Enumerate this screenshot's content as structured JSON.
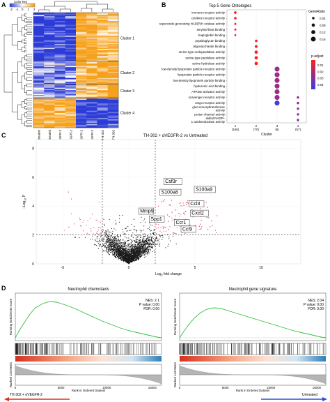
{
  "panels": {
    "a": "A",
    "b": "B",
    "c": "C",
    "d": "D"
  },
  "colors": {
    "heat_low": "#2b3bd6",
    "heat_mid": "#ffffff",
    "heat_high": "#f6a01a",
    "dot_low": "#3b3be8",
    "dot_high": "#ff1f1f",
    "volcano_sig": "#e0405a",
    "volcano_ns": "#1a1a1a",
    "gsea_curve": "#2fbf3a",
    "gsea_red": "#d7301f",
    "gsea_blue": "#2c7fb8"
  },
  "heatmap": {
    "legend_title": "Color Key",
    "legend_ticks": [
      "-2",
      "-1",
      "0",
      "1",
      "2"
    ],
    "clusters": [
      "Cluster 1",
      "Cluster 2",
      "Cluster 3",
      "Cluster 4"
    ],
    "columns": [
      "Untreated",
      "Untreated",
      "αVEGFR-2",
      "αVEGFR-2",
      "TH-302 + αVEGFR-2",
      "TH-302 + αVEGFR-2",
      "TH-302",
      "TH-302"
    ]
  },
  "chart_data": [
    {
      "type": "scatter",
      "title": "Top 5 Gene Ontologies",
      "xlabel": "Cluster",
      "categories": [
        "1\n(156)",
        "2\n(70)",
        "3\n(6)",
        "4\n(57)"
      ],
      "category_lines": [
        [
          "1",
          "(156)"
        ],
        [
          "2",
          "(70)"
        ],
        [
          "3",
          "(6)"
        ],
        [
          "4",
          "(57)"
        ]
      ],
      "terms": [
        "immune receptor activity",
        "cytokine receptor activity",
        "superoxide-generating NAD(P)H oxidase activity",
        "amyloid-beta binding",
        "haptoglobin binding",
        "peptidoglycan binding",
        "oligosaccharide binding",
        "serine-type endopeptidase activity",
        "serine-type peptidase activity",
        "serine hydrolase activity",
        "low-density lipoprotein particle receptor activity",
        "lipoprotein particle receptor activity",
        "low-density lipoprotein particle binding",
        "hyaluronic acid binding",
        "ATPase activator activity",
        "scavenger receptor activity",
        "cargo receptor activity",
        "glucuronosyltransferase activity",
        "proton channel activity",
        "alditol:NADP+ 1-oxidoreductase activity"
      ],
      "term_lines": [
        [
          "immune receptor activity"
        ],
        [
          "cytokine receptor activity"
        ],
        [
          "superoxide-generating NAD(P)H oxidase activity"
        ],
        [
          "amyloid-beta binding"
        ],
        [
          "haptoglobin binding"
        ],
        [
          "peptidoglycan binding"
        ],
        [
          "oligosaccharide binding"
        ],
        [
          "serine-type endopeptidase activity"
        ],
        [
          "serine-type peptidase activity"
        ],
        [
          "serine hydrolase activity"
        ],
        [
          "low-density lipoprotein particle receptor activity"
        ],
        [
          "lipoprotein particle receptor activity"
        ],
        [
          "low-density lipoprotein particle binding"
        ],
        [
          "hyaluronic acid binding"
        ],
        [
          "ATPase activator activity"
        ],
        [
          "scavenger receptor activity"
        ],
        [
          "cargo receptor activity"
        ],
        [
          "glucuronosyltransferase",
          "activity"
        ],
        [
          "proton channel activity"
        ],
        [
          "alditol:NADP+",
          "1-oxidoreductase activity"
        ]
      ],
      "points": [
        {
          "cluster": 1,
          "term": 0,
          "gene_ratio": 0.045,
          "p_adjust": 0.003
        },
        {
          "cluster": 1,
          "term": 1,
          "gene_ratio": 0.04,
          "p_adjust": 0.004
        },
        {
          "cluster": 1,
          "term": 2,
          "gene_ratio": 0.02,
          "p_adjust": 0.008
        },
        {
          "cluster": 1,
          "term": 3,
          "gene_ratio": 0.02,
          "p_adjust": 0.008
        },
        {
          "cluster": 1,
          "term": 4,
          "gene_ratio": 0.015,
          "p_adjust": 0.008
        },
        {
          "cluster": 2,
          "term": 5,
          "gene_ratio": 0.045,
          "p_adjust": 0.003
        },
        {
          "cluster": 2,
          "term": 6,
          "gene_ratio": 0.06,
          "p_adjust": 0.003
        },
        {
          "cluster": 2,
          "term": 7,
          "gene_ratio": 0.085,
          "p_adjust": 0.002
        },
        {
          "cluster": 2,
          "term": 8,
          "gene_ratio": 0.085,
          "p_adjust": 0.002
        },
        {
          "cluster": 2,
          "term": 9,
          "gene_ratio": 0.085,
          "p_adjust": 0.002
        },
        {
          "cluster": 3,
          "term": 10,
          "gene_ratio": 0.167,
          "p_adjust": 0.025
        },
        {
          "cluster": 3,
          "term": 11,
          "gene_ratio": 0.167,
          "p_adjust": 0.025
        },
        {
          "cluster": 3,
          "term": 12,
          "gene_ratio": 0.167,
          "p_adjust": 0.025
        },
        {
          "cluster": 3,
          "term": 13,
          "gene_ratio": 0.167,
          "p_adjust": 0.025
        },
        {
          "cluster": 3,
          "term": 14,
          "gene_ratio": 0.167,
          "p_adjust": 0.025
        },
        {
          "cluster": 3,
          "term": 15,
          "gene_ratio": 0.167,
          "p_adjust": 0.025
        },
        {
          "cluster": 3,
          "term": 16,
          "gene_ratio": 0.167,
          "p_adjust": 0.045
        },
        {
          "cluster": 4,
          "term": 15,
          "gene_ratio": 0.04,
          "p_adjust": 0.025
        },
        {
          "cluster": 4,
          "term": 16,
          "gene_ratio": 0.04,
          "p_adjust": 0.025
        },
        {
          "cluster": 4,
          "term": 17,
          "gene_ratio": 0.035,
          "p_adjust": 0.03
        },
        {
          "cluster": 4,
          "term": 18,
          "gene_ratio": 0.035,
          "p_adjust": 0.03
        },
        {
          "cluster": 4,
          "term": 19,
          "gene_ratio": 0.035,
          "p_adjust": 0.03
        }
      ],
      "size_legend_title": "GeneRatio",
      "size_legend": [
        "0.04",
        "0.08",
        "0.12",
        "0.16"
      ],
      "size_legend_values": [
        0.04,
        0.08,
        0.12,
        0.16
      ],
      "color_legend_title": "p.adjust",
      "color_legend": [
        "0.01",
        "0.02",
        "0.03",
        "0.04"
      ],
      "color_legend_values": [
        0.01,
        0.02,
        0.03,
        0.04
      ]
    },
    {
      "type": "scatter",
      "title": "TH-302 + αVEGFR-2 vs Untreated",
      "xlabel": "Log2 fold change",
      "xlabel_main": "Log",
      "xlabel_sub": "2",
      "xlabel_rest": " fold change",
      "ylabel": "–Log10 P",
      "ylabel_main": "–Log",
      "ylabel_sub": "10",
      "ylabel_p": "P",
      "xlim": [
        -7,
        13
      ],
      "ylim": [
        0,
        8.6
      ],
      "xticks": [
        -5,
        0,
        5,
        10
      ],
      "yticks": [
        0,
        2,
        4,
        6,
        8
      ],
      "fc_threshold": [
        -2,
        2
      ],
      "p_threshold": 2,
      "labeled_genes": [
        {
          "gene": "Csf3r",
          "x": 2.7,
          "y": 5.6
        },
        {
          "gene": "S100a8",
          "x": 2.4,
          "y": 4.85
        },
        {
          "gene": "S100a9",
          "x": 5.0,
          "y": 5.05
        },
        {
          "gene": "Ccl3",
          "x": 4.6,
          "y": 4.05
        },
        {
          "gene": "Mmp9",
          "x": 0.8,
          "y": 3.55
        },
        {
          "gene": "Cxcl2",
          "x": 4.7,
          "y": 3.4
        },
        {
          "gene": "Spp1",
          "x": 1.6,
          "y": 3.0
        },
        {
          "gene": "Ccr1",
          "x": 3.5,
          "y": 2.75
        },
        {
          "gene": "Ccl9",
          "x": 4.0,
          "y": 2.3
        }
      ]
    },
    {
      "type": "line",
      "title": "Neutrophil chemotaxis",
      "ylabel": "Running Enrichment Score",
      "ylabel_rank": "Ranked List Metric",
      "xlabel": "Rank in Ordered Dataset",
      "nes_label": "NES: 2.1",
      "p_label": "P value: 0.00",
      "fdr_label": "FDR: 0.00",
      "xticks": [
        0,
        5000,
        10000,
        15000
      ],
      "xlim": [
        0,
        16000
      ],
      "es_curve": [
        [
          0,
          0
        ],
        [
          500,
          0.12
        ],
        [
          1000,
          0.22
        ],
        [
          1600,
          0.34
        ],
        [
          2200,
          0.43
        ],
        [
          3000,
          0.49
        ],
        [
          3800,
          0.52
        ],
        [
          4500,
          0.51
        ],
        [
          5500,
          0.47
        ],
        [
          6500,
          0.42
        ],
        [
          7500,
          0.36
        ],
        [
          8500,
          0.3
        ],
        [
          9500,
          0.24
        ],
        [
          10500,
          0.19
        ],
        [
          11500,
          0.14
        ],
        [
          12500,
          0.1
        ],
        [
          13500,
          0.07
        ],
        [
          14500,
          0.04
        ],
        [
          15500,
          0.01
        ],
        [
          16000,
          0
        ]
      ]
    },
    {
      "type": "line",
      "title": "Neutrophil gene signature",
      "ylabel": "Running Enrichment Score",
      "ylabel_rank": "Ranked List Metric",
      "xlabel": "Rank in Ordered Dataset",
      "nes_label": "NES: 2.04",
      "p_label": "P value: 0.00",
      "fdr_label": "FDR: 0.00",
      "xticks": [
        0,
        5000,
        10000,
        15000
      ],
      "xlim": [
        0,
        16000
      ],
      "es_curve": [
        [
          0,
          0
        ],
        [
          500,
          0.1
        ],
        [
          1000,
          0.19
        ],
        [
          1600,
          0.28
        ],
        [
          2300,
          0.36
        ],
        [
          3000,
          0.41
        ],
        [
          3800,
          0.43
        ],
        [
          4500,
          0.42
        ],
        [
          5500,
          0.38
        ],
        [
          6500,
          0.34
        ],
        [
          7500,
          0.3
        ],
        [
          8500,
          0.26
        ],
        [
          9500,
          0.22
        ],
        [
          10500,
          0.18
        ],
        [
          11500,
          0.14
        ],
        [
          12500,
          0.1
        ],
        [
          13500,
          0.07
        ],
        [
          14500,
          0.04
        ],
        [
          15500,
          0.01
        ],
        [
          16000,
          0
        ]
      ]
    }
  ],
  "gsea_footer": {
    "left": "TH-302 + αVEGFR-2",
    "right": "Untreated"
  }
}
